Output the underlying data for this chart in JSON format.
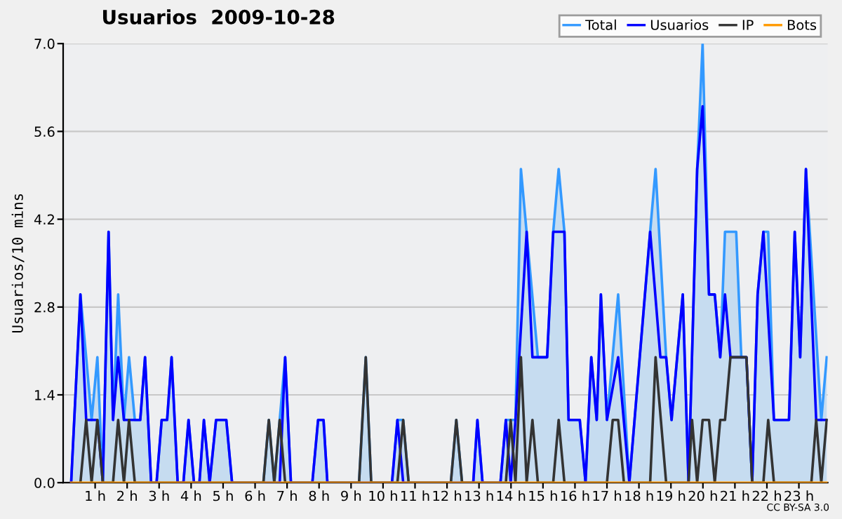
{
  "chart_data": {
    "type": "line",
    "title": "Usuarios  2009-10-28",
    "ylabel": "Usuarios/10 mins",
    "annotations": [
      "CC BY-SA 3.0"
    ],
    "xlim": [
      0,
      23.9
    ],
    "ylim": [
      0,
      7
    ],
    "xticks": [
      {
        "value": 1,
        "label": "1 h"
      },
      {
        "value": 2,
        "label": "2 h"
      },
      {
        "value": 3,
        "label": "3 h"
      },
      {
        "value": 4,
        "label": "4 h"
      },
      {
        "value": 5,
        "label": "5 h"
      },
      {
        "value": 6,
        "label": "6 h"
      },
      {
        "value": 7,
        "label": "7 h"
      },
      {
        "value": 8,
        "label": "8 h"
      },
      {
        "value": 9,
        "label": "9 h"
      },
      {
        "value": 10,
        "label": "10 h"
      },
      {
        "value": 11,
        "label": "11 h"
      },
      {
        "value": 12,
        "label": "12 h"
      },
      {
        "value": 13,
        "label": "13 h"
      },
      {
        "value": 14,
        "label": "14 h"
      },
      {
        "value": 15,
        "label": "15 h"
      },
      {
        "value": 16,
        "label": "16 h"
      },
      {
        "value": 17,
        "label": "17 h"
      },
      {
        "value": 18,
        "label": "18 h"
      },
      {
        "value": 19,
        "label": "19 h"
      },
      {
        "value": 20,
        "label": "20 h"
      },
      {
        "value": 21,
        "label": "21 h"
      },
      {
        "value": 22,
        "label": "22 h"
      },
      {
        "value": 23,
        "label": "23 h"
      }
    ],
    "yticks": [
      {
        "value": 0,
        "label": "0.0"
      },
      {
        "value": 1.4,
        "label": "1.4"
      },
      {
        "value": 2.8,
        "label": "2.8"
      },
      {
        "value": 4.2,
        "label": "4.2"
      },
      {
        "value": 5.6,
        "label": "5.6"
      },
      {
        "value": 7,
        "label": "7.0"
      }
    ],
    "grid": "y",
    "legend": "top right",
    "marker": "none",
    "line_style": "solid",
    "series": [
      {
        "name": "Total",
        "type": "area",
        "color": "#3399ff",
        "x": [
          0.25,
          0.54,
          0.72,
          0.89,
          1.07,
          1.24,
          1.42,
          1.56,
          1.72,
          1.9,
          2.06,
          2.24,
          2.41,
          2.56,
          2.75,
          2.92,
          3.08,
          3.25,
          3.39,
          3.58,
          3.76,
          3.92,
          4.09,
          4.26,
          4.4,
          4.58,
          4.78,
          5.1,
          5.28,
          6.26,
          6.43,
          6.6,
          6.77,
          6.94,
          7.12,
          7.79,
          7.97,
          8.14,
          8.26,
          9.25,
          9.46,
          9.63,
          10.28,
          10.45,
          10.63,
          10.8,
          12.12,
          12.29,
          12.47,
          12.82,
          12.95,
          13.11,
          13.67,
          13.84,
          13.99,
          14.14,
          14.31,
          14.84,
          15.13,
          15.32,
          15.49,
          15.67,
          15.8,
          16.15,
          16.33,
          16.51,
          16.68,
          16.81,
          17.0,
          17.35,
          17.7,
          18.35,
          18.52,
          18.85,
          19.02,
          19.37,
          19.55,
          19.82,
          19.99,
          20.19,
          20.37,
          20.54,
          20.69,
          21.04,
          21.2,
          21.36,
          21.54,
          21.71,
          21.89,
          22.04,
          22.22,
          22.69,
          22.87,
          23.04,
          23.22,
          23.7,
          23.87
        ],
        "values": [
          0,
          3,
          2,
          1,
          2,
          0,
          4,
          1,
          3,
          1,
          2,
          1,
          1,
          2,
          0,
          0,
          1,
          1,
          2,
          0,
          0,
          1,
          0,
          0,
          1,
          0,
          1,
          1,
          0,
          0,
          1,
          0,
          1,
          2,
          0,
          0,
          1,
          1,
          0,
          0,
          2,
          0,
          0,
          1,
          1,
          0,
          0,
          1,
          0,
          0,
          1,
          0,
          0,
          1,
          1,
          1,
          5,
          2,
          2,
          4,
          5,
          4,
          1,
          1,
          0,
          2,
          1,
          3,
          1,
          3,
          0,
          4,
          5,
          2,
          1,
          3,
          0,
          5,
          7,
          3,
          3,
          2,
          4,
          4,
          2,
          2,
          0,
          3,
          4,
          4,
          1,
          1,
          4,
          2,
          5,
          1,
          2
        ]
      },
      {
        "name": "Usuarios",
        "color": "#0000ff",
        "x": [
          0.25,
          0.54,
          0.72,
          1.07,
          1.24,
          1.42,
          1.56,
          1.72,
          1.9,
          2.41,
          2.56,
          2.75,
          2.92,
          3.08,
          3.25,
          3.39,
          3.58,
          3.76,
          3.92,
          4.09,
          4.26,
          4.4,
          4.58,
          4.78,
          5.1,
          5.28,
          6.77,
          6.94,
          7.12,
          7.79,
          7.97,
          8.14,
          8.26,
          10.28,
          10.45,
          10.63,
          12.82,
          12.95,
          13.11,
          13.67,
          13.84,
          13.99,
          14.14,
          14.49,
          14.67,
          15.13,
          15.32,
          15.67,
          15.8,
          16.15,
          16.33,
          16.51,
          16.68,
          16.81,
          17.0,
          17.35,
          17.7,
          18.35,
          18.67,
          18.85,
          19.02,
          19.37,
          19.55,
          19.82,
          19.99,
          20.19,
          20.37,
          20.54,
          20.69,
          20.86,
          21.36,
          21.54,
          21.71,
          21.89,
          22.22,
          22.69,
          22.87,
          23.04,
          23.22,
          23.54,
          23.87
        ],
        "values": [
          0,
          3,
          1,
          1,
          0,
          4,
          1,
          2,
          1,
          1,
          2,
          0,
          0,
          1,
          1,
          2,
          0,
          0,
          1,
          0,
          0,
          1,
          0,
          1,
          1,
          0,
          0,
          2,
          0,
          0,
          1,
          1,
          0,
          0,
          1,
          0,
          0,
          1,
          0,
          0,
          1,
          0,
          1,
          4,
          2,
          2,
          4,
          4,
          1,
          1,
          0,
          2,
          1,
          3,
          1,
          2,
          0,
          4,
          2,
          2,
          1,
          3,
          0,
          5,
          6,
          3,
          3,
          2,
          3,
          2,
          2,
          0,
          3,
          4,
          1,
          1,
          4,
          2,
          5,
          1,
          1
        ]
      },
      {
        "name": "IP",
        "color": "#333333",
        "x": [
          0.54,
          0.72,
          0.89,
          1.07,
          1.24,
          1.56,
          1.72,
          1.9,
          2.06,
          2.24,
          6.26,
          6.43,
          6.6,
          6.77,
          6.94,
          9.25,
          9.46,
          9.63,
          10.45,
          10.63,
          10.8,
          12.12,
          12.29,
          12.47,
          13.84,
          13.99,
          14.14,
          14.31,
          14.49,
          14.67,
          14.84,
          15.32,
          15.49,
          15.67,
          17.0,
          17.18,
          17.35,
          17.53,
          18.35,
          18.52,
          18.85,
          19.55,
          19.66,
          19.82,
          19.99,
          20.19,
          20.37,
          20.54,
          20.69,
          20.86,
          21.36,
          21.54,
          21.89,
          22.04,
          22.22,
          23.39,
          23.54,
          23.7,
          23.87
        ],
        "values": [
          0,
          1,
          0,
          1,
          0,
          0,
          1,
          0,
          1,
          0,
          0,
          1,
          0,
          1,
          0,
          0,
          2,
          0,
          0,
          1,
          0,
          0,
          1,
          0,
          0,
          1,
          0,
          2,
          0,
          1,
          0,
          0,
          1,
          0,
          0,
          1,
          1,
          0,
          0,
          2,
          0,
          0,
          1,
          0,
          1,
          1,
          0,
          1,
          1,
          2,
          2,
          0,
          0,
          1,
          0,
          0,
          1,
          0,
          1
        ]
      },
      {
        "name": "Bots",
        "color": "#ff9900",
        "x": [
          0.25,
          23.87
        ],
        "values": [
          0,
          0
        ]
      }
    ]
  }
}
